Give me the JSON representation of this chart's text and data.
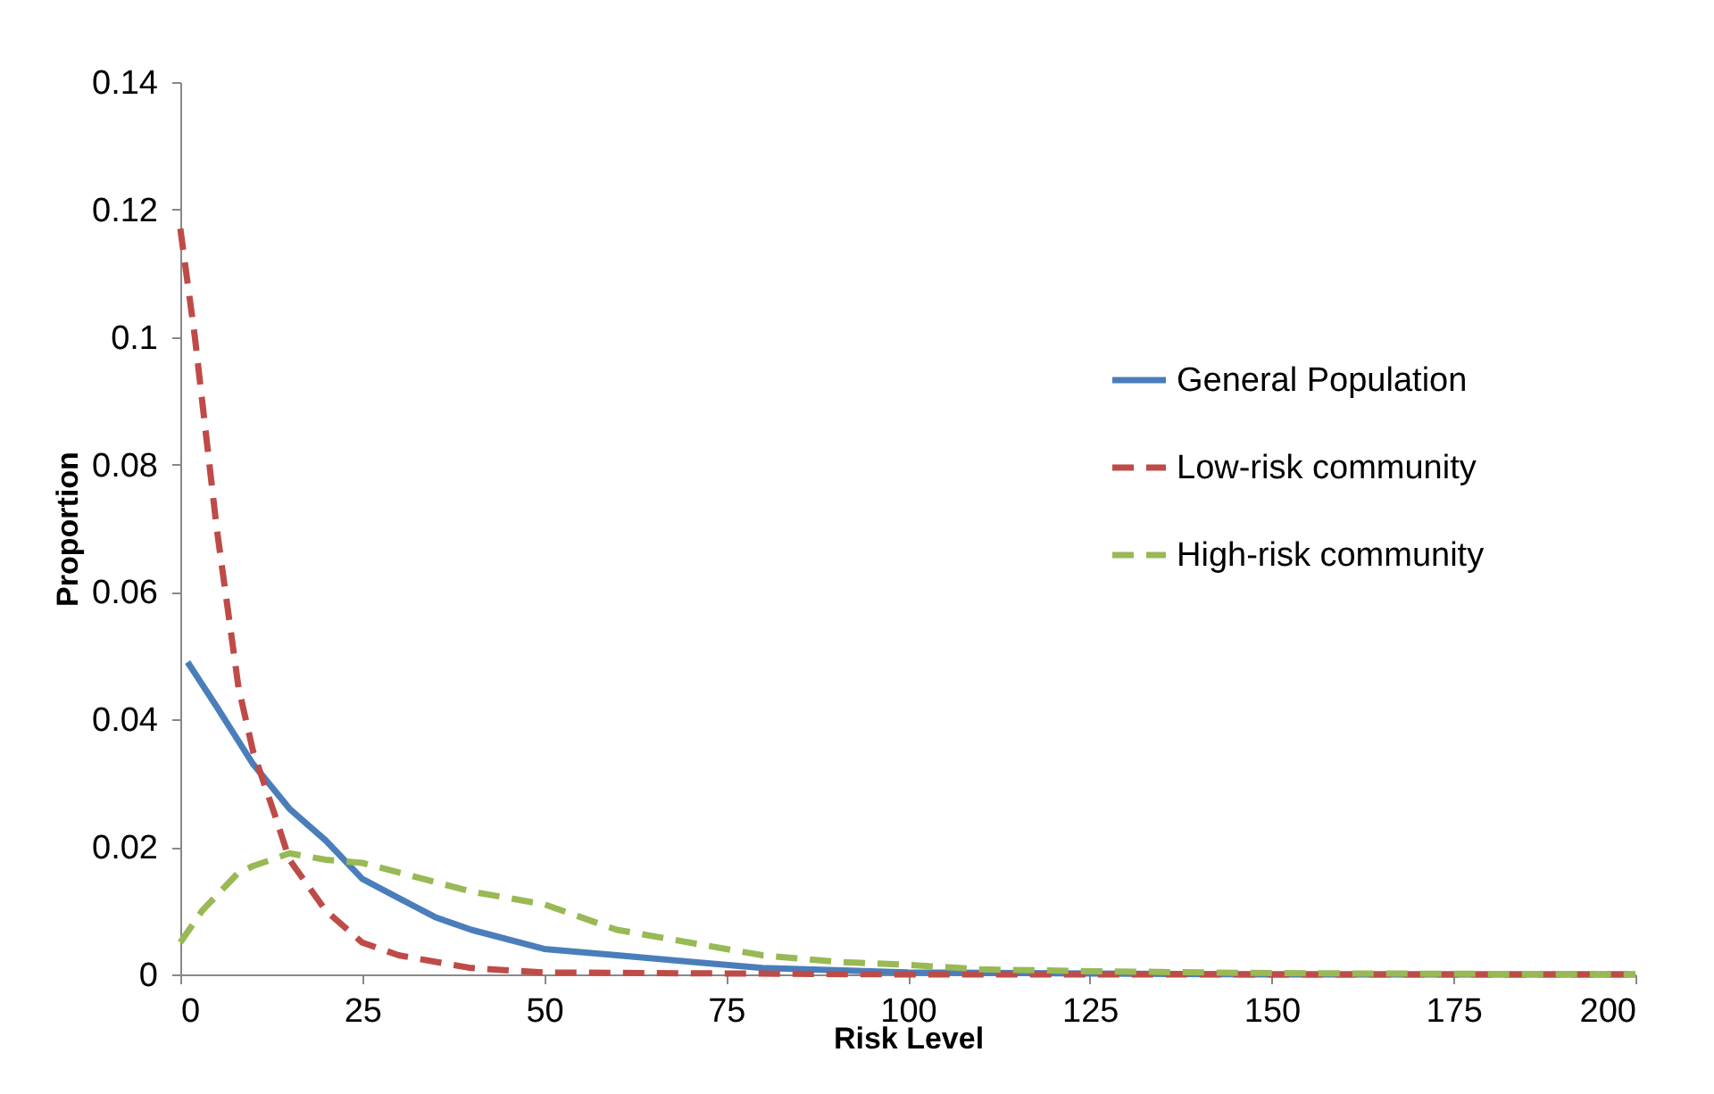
{
  "chart_data": {
    "type": "line",
    "xlabel": "Risk Level",
    "ylabel": "Proportion",
    "xlim": [
      0,
      200
    ],
    "xticks": [
      0,
      25,
      50,
      75,
      100,
      125,
      150,
      175,
      200
    ],
    "ylim": [
      0,
      0.14
    ],
    "yticks": [
      0,
      0.02,
      0.04,
      0.06,
      0.08,
      0.1,
      0.12,
      0.14
    ],
    "grid": false,
    "legend": "right",
    "marker": "none",
    "series": [
      {
        "name": "General Population",
        "color": "#4a7ebb",
        "line_style": "solid",
        "x": [
          1,
          5,
          10,
          15,
          20,
          25,
          30,
          35,
          40,
          50,
          60,
          70,
          80,
          100,
          150,
          200
        ],
        "values": [
          0.049,
          0.042,
          0.033,
          0.026,
          0.021,
          0.015,
          0.012,
          0.009,
          0.007,
          0.004,
          0.003,
          0.002,
          0.001,
          0.0003,
          0,
          0
        ]
      },
      {
        "name": "Low-risk community",
        "color": "#be4b48",
        "line_style": "dashed",
        "x": [
          0,
          2,
          5,
          8,
          10,
          13,
          15,
          20,
          25,
          30,
          40,
          50,
          100,
          200
        ],
        "values": [
          0.117,
          0.1,
          0.07,
          0.045,
          0.035,
          0.025,
          0.018,
          0.01,
          0.005,
          0.003,
          0.001,
          0.0003,
          0,
          0
        ]
      },
      {
        "name": "High-risk community",
        "color": "#98b954",
        "line_style": "dashed",
        "x": [
          0,
          3,
          8,
          10,
          15,
          20,
          25,
          30,
          40,
          50,
          60,
          70,
          80,
          90,
          100,
          110,
          125,
          150,
          200
        ],
        "values": [
          0.005,
          0.01,
          0.016,
          0.017,
          0.019,
          0.018,
          0.0175,
          0.016,
          0.013,
          0.011,
          0.007,
          0.005,
          0.003,
          0.002,
          0.0015,
          0.0008,
          0.0005,
          0.0002,
          0
        ]
      }
    ]
  }
}
